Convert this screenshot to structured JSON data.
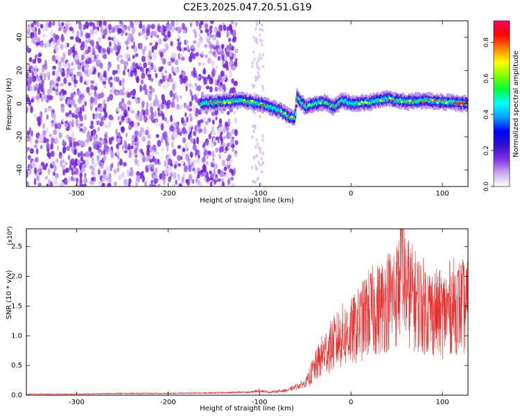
{
  "figure_title": "C2E3.2025.047.20.51.G19",
  "chart_data": [
    {
      "type": "heatmap",
      "title": "",
      "xlabel": "Height of straight line (km)",
      "ylabel": "Frequency (Hz)",
      "xlim": [
        -355,
        128
      ],
      "ylim": [
        -50,
        50
      ],
      "xticks": [
        -300,
        -200,
        -100,
        0,
        100
      ],
      "yticks": [
        -40,
        -20,
        0,
        20,
        40
      ],
      "colorbar": {
        "label": "Normalized spectral amplitude",
        "range": [
          0,
          0.92
        ],
        "ticks": [
          0.0,
          0.2,
          0.4,
          0.6,
          0.8
        ],
        "tick_labels": [
          "0.0",
          "0.2",
          "0.4",
          "0.6",
          "0.8"
        ],
        "colormap": [
          "#ffffff",
          "#c8a8f0",
          "#7f2fe0",
          "#3010d0",
          "#0000ff",
          "#00a0ff",
          "#00ffff",
          "#00ff40",
          "#80ff00",
          "#ffff00",
          "#ff8000",
          "#ff0000",
          "#ff0060"
        ]
      },
      "ridge": {
        "x": [
          -165,
          -140,
          -120,
          -100,
          -85,
          -75,
          -68,
          -62,
          -60,
          -50,
          -40,
          -30,
          -20,
          -10,
          0,
          20,
          40,
          60,
          80,
          100,
          128
        ],
        "y": [
          0,
          1,
          2,
          0,
          -3,
          -5,
          -8,
          -9,
          4,
          -2,
          0,
          1,
          -2,
          2,
          0,
          1,
          3,
          1,
          2,
          1,
          0
        ]
      }
    },
    {
      "type": "line",
      "title": "",
      "xlabel": "Height of straight line (km)",
      "ylabel": "SNR (10 * v/v)",
      "y_multiplier": "(x10⁴)",
      "xlim": [
        -355,
        128
      ],
      "ylim": [
        0,
        2.8
      ],
      "xticks": [
        -300,
        -200,
        -100,
        0,
        100
      ],
      "yticks": [
        0.0,
        0.5,
        1.0,
        1.5,
        2.0,
        2.5
      ],
      "ytick_labels": [
        "0.0",
        "0.5",
        "1.0",
        "1.5",
        "2.0",
        "2.5"
      ],
      "color": "#e83030",
      "series": [
        {
          "x": [
            -355,
            -300,
            -250,
            -200,
            -150,
            -110,
            -100,
            -90,
            -70,
            -50,
            -40,
            -30,
            -20,
            -10,
            0,
            10,
            20,
            30,
            40,
            50,
            56,
            60,
            70,
            80,
            90,
            100,
            110,
            120,
            128
          ],
          "y": [
            0.02,
            0.02,
            0.03,
            0.03,
            0.04,
            0.05,
            0.08,
            0.05,
            0.08,
            0.2,
            0.45,
            0.7,
            0.85,
            1.0,
            1.05,
            1.2,
            1.4,
            1.45,
            1.6,
            1.7,
            2.1,
            1.8,
            1.6,
            1.5,
            1.4,
            1.35,
            1.5,
            1.5,
            1.45
          ]
        }
      ]
    }
  ]
}
